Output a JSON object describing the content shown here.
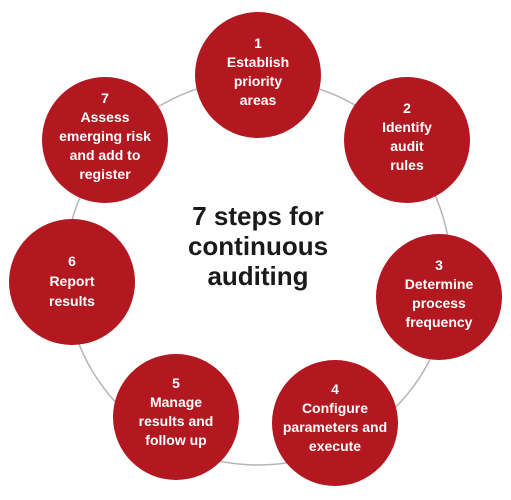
{
  "title_lines": [
    "7 steps for",
    "continuous",
    "auditing"
  ],
  "steps": [
    {
      "number": "1",
      "lines": [
        "Establish",
        "priority",
        "areas"
      ]
    },
    {
      "number": "2",
      "lines": [
        "Identify",
        "audit",
        "rules"
      ]
    },
    {
      "number": "3",
      "lines": [
        "Determine",
        "process",
        "frequency"
      ]
    },
    {
      "number": "4",
      "lines": [
        "Configure",
        "parameters and",
        "execute"
      ]
    },
    {
      "number": "5",
      "lines": [
        "Manage",
        "results and",
        "follow up"
      ]
    },
    {
      "number": "6",
      "lines": [
        "Report",
        "results"
      ]
    },
    {
      "number": "7",
      "lines": [
        "Assess",
        "emerging risk",
        "and add to",
        "register"
      ]
    }
  ],
  "colors": {
    "node": "#b3171f",
    "ring": "#b5b5b5",
    "title": "#1a1a1a"
  }
}
